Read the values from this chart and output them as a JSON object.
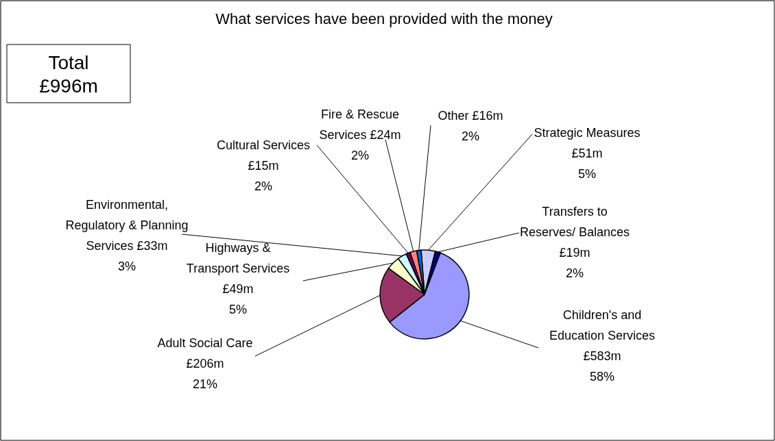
{
  "chart_data": {
    "type": "pie",
    "title": "What services have been provided with the money",
    "categories": [
      "Strategic Measures",
      "Transfers to Reserves/ Balances",
      "Children's and Education Services",
      "Adult Social Care",
      "Highways & Transport Services",
      "Environmental, Regulatory & Planning Services",
      "Cultural Services",
      "Fire & Rescue Services",
      "Other"
    ],
    "values": [
      51,
      19,
      583,
      206,
      49,
      33,
      15,
      24,
      16
    ],
    "value_labels": [
      "£51m",
      "£19m",
      "£583m",
      "£206m",
      "£49m",
      "£33m",
      "£15m",
      "£24m",
      "£16m"
    ],
    "colors": [
      "#ccccff",
      "#000080",
      "#9999ff",
      "#993366",
      "#ffffcc",
      "#ccffff",
      "#660066",
      "#ff8080",
      "#0066cc"
    ],
    "annotations": [
      "Total £996m",
      {
        "text": "5%",
        "x": "Strategic Measures"
      },
      {
        "text": "2%",
        "x": "Transfers to Reserves/ Balances"
      },
      {
        "text": "58%",
        "x": "Children's and Education Services"
      },
      {
        "text": "21%",
        "x": "Adult Social Care"
      },
      {
        "text": "5%",
        "x": "Highways & Transport Services"
      },
      {
        "text": "3%",
        "x": "Environmental, Regulatory & Planning Services"
      },
      {
        "text": "2%",
        "x": "Cultural Services"
      },
      {
        "text": "2%",
        "x": "Fire & Rescue Services"
      },
      {
        "text": "2%",
        "x": "Other"
      }
    ]
  }
}
